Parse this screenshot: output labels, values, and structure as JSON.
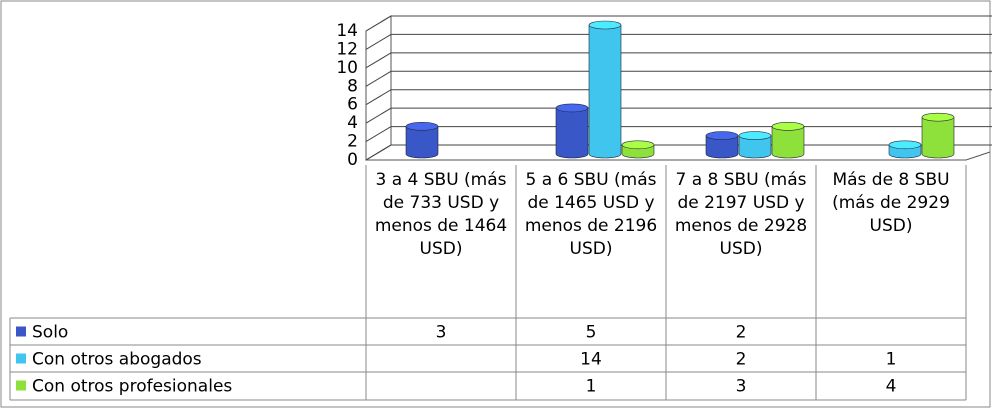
{
  "chart_data": {
    "type": "bar3d",
    "categories": [
      "3 a 4 SBU (más de 733 USD y menos de 1464 USD)",
      "5 a 6 SBU (más de 1465 USD y menos de 2196 USD)",
      "7 a 8 SBU (más de 2197 USD y menos de 2928 USD)",
      "Más de 8 SBU (más de 2929 USD)"
    ],
    "series": [
      {
        "name": "Solo",
        "color": "#3a57c7",
        "values": [
          3,
          5,
          2,
          null
        ]
      },
      {
        "name": "Con otros abogados",
        "color": "#3fc5ee",
        "values": [
          null,
          14,
          2,
          1
        ]
      },
      {
        "name": "Con otros profesionales",
        "color": "#8ee03a",
        "values": [
          null,
          1,
          3,
          4
        ]
      }
    ],
    "ylim": [
      0,
      14
    ],
    "yticks": [
      0,
      2,
      4,
      6,
      8,
      10,
      12,
      14
    ],
    "grid": true,
    "data_table": true
  }
}
